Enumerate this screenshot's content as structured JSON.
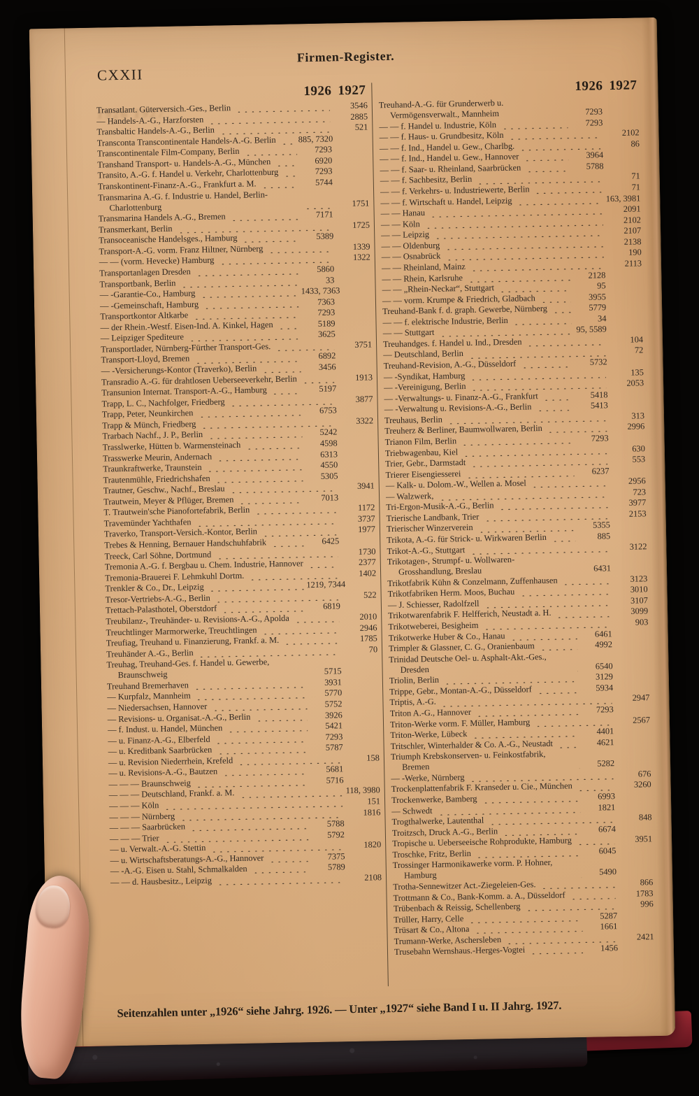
{
  "page": {
    "folio": "CXXII",
    "title": "Firmen-Register.",
    "year_headers": {
      "y26": "1926",
      "y27": "1927"
    },
    "ghost_text": "1926 1927",
    "footer": "Seitenzahlen unter „1926“ siehe Jahrg. 1926. — Unter „1927“ siehe Band I u. II Jahrg. 1927.",
    "colors": {
      "paper": "#d4a475",
      "ink": "#2e2620",
      "cover_red": "#87222c",
      "leather": "#241f22",
      "skin": "#e4ac92"
    }
  },
  "left_column": [
    {
      "n": "Transatlant. Güterversich.-Ges., Berlin",
      "p26": "",
      "p27": "3546"
    },
    {
      "n": "— Handels-A.-G., Harzforsten",
      "p26": "",
      "p27": "2885"
    },
    {
      "n": "Transbaltic Handels-A.-G., Berlin",
      "p26": "",
      "p27": "521"
    },
    {
      "n": "Transconta Transcontinentale Handels-A.-G. Berlin",
      "p26": "885, 7320",
      "p27": ""
    },
    {
      "n": "Transcontinentale Film-Company, Berlin",
      "p26": "7293",
      "p27": ""
    },
    {
      "n": "Transhand Transport- u. Handels-A.-G., München",
      "p26": "6920",
      "p27": ""
    },
    {
      "n": "Transito, A.-G. f. Handel u. Verkehr, Charlottenburg",
      "p26": "7293",
      "p27": ""
    },
    {
      "n": "Transkontinent-Finanz-A.-G., Frankfurt a. M.",
      "p26": "5744",
      "p27": ""
    },
    {
      "n": "Transmarina A.-G. f. Industrie u. Handel, Berlin-Charlottenburg",
      "p26": "",
      "p27": "1751"
    },
    {
      "n": "Transmarina Handels A.-G., Bremen",
      "p26": "7171",
      "p27": ""
    },
    {
      "n": "Transmerkant, Berlin",
      "p26": "",
      "p27": "1725"
    },
    {
      "n": "Transoceanische Handelsges., Hamburg",
      "p26": "5389",
      "p27": ""
    },
    {
      "n": "Transport-A.-G. vorm. Franz Hiltner, Nürnberg",
      "p26": "",
      "p27": "1339"
    },
    {
      "n": "— — (vorm. Hevecke) Hamburg",
      "p26": "",
      "p27": "1322"
    },
    {
      "n": "Transportanlagen Dresden",
      "p26": "5860",
      "p27": ""
    },
    {
      "n": "Transportbank, Berlin",
      "p26": "33",
      "p27": ""
    },
    {
      "n": "— -Garantie-Co., Hamburg",
      "p26": "1433, 7363",
      "p27": ""
    },
    {
      "n": "— -Gemeinschaft, Hamburg",
      "p26": "7363",
      "p27": ""
    },
    {
      "n": "Transportkontor Altkarbe",
      "p26": "7293",
      "p27": ""
    },
    {
      "n": "— der Rhein.-Westf. Eisen-Ind. A. Kinkel, Hagen",
      "p26": "5189",
      "p27": ""
    },
    {
      "n": "— Leipziger Spediteure",
      "p26": "3625",
      "p27": ""
    },
    {
      "n": "Transportlader, Nürnberg-Fürther Transport-Ges.",
      "p26": "",
      "p27": "3751"
    },
    {
      "n": "Transport-Lloyd, Bremen",
      "p26": "6892",
      "p27": ""
    },
    {
      "n": "— -Versicherungs-Kontor (Traverko), Berlin",
      "p26": "3456",
      "p27": ""
    },
    {
      "n": "Transradio A.-G. für drahtlosen Ueberseeverkehr, Berlin",
      "p26": "",
      "p27": "1913"
    },
    {
      "n": "Transunion Internat. Transport-A.-G., Hamburg",
      "p26": "5197",
      "p27": ""
    },
    {
      "n": "Trapp, L. C., Nachfolger, Friedberg",
      "p26": "",
      "p27": "3877"
    },
    {
      "n": "Trapp, Peter, Neunkirchen",
      "p26": "6753",
      "p27": ""
    },
    {
      "n": "Trapp & Münch, Friedberg",
      "p26": "",
      "p27": "3322"
    },
    {
      "n": "Trarbach Nachf., J. P., Berlin",
      "p26": "5242",
      "p27": ""
    },
    {
      "n": "Trasslwerke, Hütten b. Warmensteinach",
      "p26": "4598",
      "p27": ""
    },
    {
      "n": "Trasswerke Meurin, Andernach",
      "p26": "6313",
      "p27": ""
    },
    {
      "n": "Traunkraftwerke, Traunstein",
      "p26": "4550",
      "p27": ""
    },
    {
      "n": "Trautenmühle, Friedrichshafen",
      "p26": "5305",
      "p27": ""
    },
    {
      "n": "Trautner, Geschw., Nachf., Breslau",
      "p26": "",
      "p27": "3941"
    },
    {
      "n": "Trautwein, Meyer & Pflüger, Bremen",
      "p26": "7013",
      "p27": ""
    },
    {
      "n": "T. Trautwein'sche Pianofortefabrik, Berlin",
      "p26": "",
      "p27": "1172"
    },
    {
      "n": "Travemünder Yachthafen",
      "p26": "",
      "p27": "3737"
    },
    {
      "n": "Traverko, Transport-Versich.-Kontor, Berlin",
      "p26": "",
      "p27": "1977"
    },
    {
      "n": "Trebes & Henning, Bernauer Handschuhfabrik",
      "p26": "6425",
      "p27": ""
    },
    {
      "n": "Treeck, Carl Söhne, Dortmund",
      "p26": "",
      "p27": "1730"
    },
    {
      "n": "Tremonia A.-G. f. Bergbau u. Chem. Industrie, Hannover",
      "p26": "",
      "p27": "2377"
    },
    {
      "n": "Tremonia-Brauerei F. Lehmkuhl Dortm.",
      "p26": "",
      "p27": "1402"
    },
    {
      "n": "Trenkler & Co., Dr., Leipzig",
      "p26": "1219, 7344",
      "p27": ""
    },
    {
      "n": "Tresor-Vertriebs-A.-G., Berlin",
      "p26": "",
      "p27": "522"
    },
    {
      "n": "Trettach-Palasthotel, Oberstdorf",
      "p26": "6819",
      "p27": ""
    },
    {
      "n": "Treubilanz-, Treuhänder- u. Revisions-A.-G., Apolda",
      "p26": "",
      "p27": "2010"
    },
    {
      "n": "Treuchtlinger Marmorwerke, Treuchtlingen",
      "p26": "",
      "p27": "2946"
    },
    {
      "n": "Treufiag, Treuhand u. Finanzierung, Frankf. a. M.",
      "p26": "",
      "p27": "1785"
    },
    {
      "n": "Treuhänder A.-G., Berlin",
      "p26": "",
      "p27": "70"
    },
    {
      "n": "Treuhag, Treuhand-Ges. f. Handel u. Gewerbe, Braunschweig",
      "p26": "5715",
      "p27": ""
    },
    {
      "n": "Treuhand Bremerhaven",
      "p26": "3931",
      "p27": ""
    },
    {
      "n": "— Kurpfalz, Mannheim",
      "p26": "5770",
      "p27": ""
    },
    {
      "n": "— Niedersachsen, Hannover",
      "p26": "5752",
      "p27": ""
    },
    {
      "n": "— Revisions- u. Organisat.-A.-G., Berlin",
      "p26": "3926",
      "p27": ""
    },
    {
      "n": "— f. Indust. u. Handel, München",
      "p26": "5421",
      "p27": ""
    },
    {
      "n": "— u. Finanz-A.-G., Elberfeld",
      "p26": "7293",
      "p27": ""
    },
    {
      "n": "— u. Kreditbank Saarbrücken",
      "p26": "5787",
      "p27": ""
    },
    {
      "n": "— u. Revision Niederrhein, Krefeld",
      "p26": "",
      "p27": "158"
    },
    {
      "n": "— u. Revisions-A.-G., Bautzen",
      "p26": "5681",
      "p27": ""
    },
    {
      "n": "— — — Braunschweig",
      "p26": "5716",
      "p27": ""
    },
    {
      "n": "— — — Deutschland, Frankf. a. M.",
      "p26": "",
      "p27": "118, 3980"
    },
    {
      "n": "— — — Köln",
      "p26": "",
      "p27": "151"
    },
    {
      "n": "— — — Nürnberg",
      "p26": "",
      "p27": "1816"
    },
    {
      "n": "— — — Saarbrücken",
      "p26": "5788",
      "p27": ""
    },
    {
      "n": "— — — Trier",
      "p26": "5792",
      "p27": ""
    },
    {
      "n": "— u. Verwalt.-A.-G. Stettin",
      "p26": "",
      "p27": "1820"
    },
    {
      "n": "— u. Wirtschaftsberatungs-A.-G., Hannover",
      "p26": "7375",
      "p27": ""
    },
    {
      "n": "— -A.-G. Eisen u. Stahl, Schmalkalden",
      "p26": "5789",
      "p27": ""
    },
    {
      "n": "— — d. Hausbesitz., Leipzig",
      "p26": "",
      "p27": "2108"
    }
  ],
  "right_column": [
    {
      "n": "Treuhand-A.-G. für Grunderwerb u. Vermögensverwalt., Mannheim",
      "p26": "7293",
      "p27": ""
    },
    {
      "n": "— — f. Handel u. Industrie, Köln",
      "p26": "7293",
      "p27": ""
    },
    {
      "n": "— — f. Haus- u. Grundbesitz, Köln",
      "p26": "",
      "p27": "2102"
    },
    {
      "n": "— — f. Ind., Handel u. Gew., Charlbg.",
      "p26": "",
      "p27": "86"
    },
    {
      "n": "— — f. Ind., Handel u. Gew., Hannover",
      "p26": "3964",
      "p27": ""
    },
    {
      "n": "— — f. Saar- u. Rheinland, Saarbrücken",
      "p26": "5788",
      "p27": ""
    },
    {
      "n": "— — f. Sachbesitz, Berlin",
      "p26": "",
      "p27": "71"
    },
    {
      "n": "— — f. Verkehrs- u. Industriewerte, Berlin",
      "p26": "",
      "p27": "71"
    },
    {
      "n": "— — f. Wirtschaft u. Handel, Leipzig",
      "p26": "",
      "p27": "163, 3981"
    },
    {
      "n": "— — Hanau",
      "p26": "",
      "p27": "2091"
    },
    {
      "n": "— — Köln",
      "p26": "",
      "p27": "2102"
    },
    {
      "n": "— — Leipzig",
      "p26": "",
      "p27": "2107"
    },
    {
      "n": "— — Oldenburg",
      "p26": "",
      "p27": "2138"
    },
    {
      "n": "— — Osnabrück",
      "p26": "",
      "p27": "190"
    },
    {
      "n": "— — Rheinland, Mainz",
      "p26": "",
      "p27": "2113"
    },
    {
      "n": "— — Rhein, Karlsruhe",
      "p26": "2128",
      "p27": ""
    },
    {
      "n": "— — „Rhein-Neckar“, Stuttgart",
      "p26": "95",
      "p27": ""
    },
    {
      "n": "— — vorm. Krumpe & Friedrich, Gladbach",
      "p26": "3955",
      "p27": ""
    },
    {
      "n": "Treuhand-Bank f. d. graph. Gewerbe, Nürnberg",
      "p26": "5779",
      "p27": ""
    },
    {
      "n": "— — f. elektrische Industrie, Berlin",
      "p26": "34",
      "p27": ""
    },
    {
      "n": "— — Stuttgart",
      "p26": "95, 5589",
      "p27": ""
    },
    {
      "n": "Treuhandges. f. Handel u. Ind., Dresden",
      "p26": "",
      "p27": "104"
    },
    {
      "n": "— Deutschland, Berlin",
      "p26": "",
      "p27": "72"
    },
    {
      "n": "Treuhand-Revision, A.-G., Düsseldorf",
      "p26": "5732",
      "p27": ""
    },
    {
      "n": "— -Syndikat, Hamburg",
      "p26": "",
      "p27": "135"
    },
    {
      "n": "— -Vereinigung, Berlin",
      "p26": "",
      "p27": "2053"
    },
    {
      "n": "— -Verwaltungs- u. Finanz-A.-G., Frankfurt",
      "p26": "5418",
      "p27": ""
    },
    {
      "n": "— -Verwaltung u. Revisions-A.-G., Berlin",
      "p26": "5413",
      "p27": ""
    },
    {
      "n": "Treuhaus, Berlin",
      "p26": "",
      "p27": "313"
    },
    {
      "n": "Treuherz & Berliner, Baumwollwaren, Berlin",
      "p26": "",
      "p27": "2996"
    },
    {
      "n": "Trianon Film, Berlin",
      "p26": "7293",
      "p27": ""
    },
    {
      "n": "Triebwagenbau, Kiel",
      "p26": "",
      "p27": "630"
    },
    {
      "n": "Trier, Gebr., Darmstadt",
      "p26": "",
      "p27": "553"
    },
    {
      "n": "Trierer Eisengiesserei",
      "p26": "6237",
      "p27": ""
    },
    {
      "n": "— Kalk- u. Dolom.-W., Wellen a. Mosel",
      "p26": "",
      "p27": "2956"
    },
    {
      "n": "— Walzwerk,",
      "p26": "",
      "p27": "723"
    },
    {
      "n": "Tri-Ergon-Musik-A.-G., Berlin",
      "p26": "",
      "p27": "3977"
    },
    {
      "n": "Trierische Landbank, Trier",
      "p26": "",
      "p27": "2153"
    },
    {
      "n": "Trierischer Winzerverein",
      "p26": "5355",
      "p27": ""
    },
    {
      "n": "Trikota, A.-G. für Strick- u. Wirkwaren Berlin",
      "p26": "885",
      "p27": ""
    },
    {
      "n": "Trikot-A.-G., Stuttgart",
      "p26": "",
      "p27": "3122"
    },
    {
      "n": "Trikotagen-, Strumpf- u. Wollwaren-Grosshandlung, Breslau",
      "p26": "6431",
      "p27": ""
    },
    {
      "n": "Trikotfabrik Kühn & Conzelmann, Zuffenhausen",
      "p26": "",
      "p27": "3123"
    },
    {
      "n": "Trikotfabriken Herm. Moos, Buchau",
      "p26": "",
      "p27": "3010"
    },
    {
      "n": "— J. Schiesser, Radolfzell",
      "p26": "",
      "p27": "3107"
    },
    {
      "n": "Trikotwarenfabrik F. Helfferich, Neustadt a. H.",
      "p26": "",
      "p27": "3099"
    },
    {
      "n": "Trikotweberei, Besigheim",
      "p26": "",
      "p27": "903"
    },
    {
      "n": "Trikotwerke Huber & Co., Hanau",
      "p26": "6461",
      "p27": ""
    },
    {
      "n": "Trimpler & Glassner, C. G., Oranienbaum",
      "p26": "4992",
      "p27": ""
    },
    {
      "n": "Trinidad Deutsche Oel- u. Asphalt-Akt.-Ges., Dresden",
      "p26": "6540",
      "p27": ""
    },
    {
      "n": "Triolin, Berlin",
      "p26": "3129",
      "p27": ""
    },
    {
      "n": "Trippe, Gebr., Montan-A.-G., Düsseldorf",
      "p26": "5934",
      "p27": ""
    },
    {
      "n": "Triptis, A.-G.",
      "p26": "",
      "p27": "2947"
    },
    {
      "n": "Triton A.-G., Hannover",
      "p26": "7293",
      "p27": ""
    },
    {
      "n": "Triton-Werke vorm. F. Müller, Hamburg",
      "p26": "",
      "p27": "2567"
    },
    {
      "n": "Triton-Werke, Lübeck",
      "p26": "4401",
      "p27": ""
    },
    {
      "n": "Tritschler, Winterhalder & Co. A.-G., Neustadt",
      "p26": "4621",
      "p27": ""
    },
    {
      "n": "Triumph Krebskonserven- u. Feinkostfabrik, Bremen",
      "p26": "5282",
      "p27": ""
    },
    {
      "n": "— -Werke, Nürnberg",
      "p26": "",
      "p27": "676"
    },
    {
      "n": "Trockenplattenfabrik F. Kranseder u. Cie., München",
      "p26": "",
      "p27": "3260"
    },
    {
      "n": "Trockenwerke, Bamberg",
      "p26": "6993",
      "p27": ""
    },
    {
      "n": "— Schwedt",
      "p26": "1821",
      "p27": ""
    },
    {
      "n": "Trogthalwerke, Lautenthal",
      "p26": "",
      "p27": "848"
    },
    {
      "n": "Troitzsch, Druck A.-G., Berlin",
      "p26": "6674",
      "p27": ""
    },
    {
      "n": "Tropische u. Ueberseeische Rohprodukte, Hamburg",
      "p26": "",
      "p27": "3951"
    },
    {
      "n": "Troschke, Fritz, Berlin",
      "p26": "6045",
      "p27": ""
    },
    {
      "n": "Trossinger Harmonikawerke vorm. P. Hohner, Hamburg",
      "p26": "5490",
      "p27": ""
    },
    {
      "n": "Trotha-Sennewitzer Act.-Ziegeleien-Ges.",
      "p26": "",
      "p27": "866"
    },
    {
      "n": "Trottmann & Co., Bank-Komm. a. A., Düsseldorf",
      "p26": "",
      "p27": "1783"
    },
    {
      "n": "Trübenbach & Reissig, Schellenberg",
      "p26": "",
      "p27": "996"
    },
    {
      "n": "Trüller, Harry, Celle",
      "p26": "5287",
      "p27": ""
    },
    {
      "n": "Trüsart & Co., Altona",
      "p26": "1661",
      "p27": ""
    },
    {
      "n": "Trumann-Werke, Aschersleben",
      "p26": "",
      "p27": "2421"
    },
    {
      "n": "Trusebahn Wernshaus.-Herges-Vogtei",
      "p26": "1456",
      "p27": ""
    }
  ]
}
